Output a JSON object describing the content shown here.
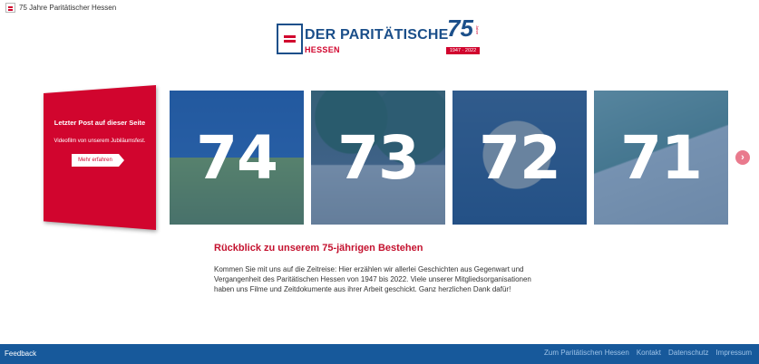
{
  "tab": {
    "title": "75 Jahre Paritätischer Hessen"
  },
  "logo": {
    "name_part1": "DER PARIT",
    "name_part2": "Ä",
    "name_part3": "TISCHE",
    "region": "HESSEN",
    "anniversary": "75",
    "jahre": "Jahre",
    "years": "1947 · 2022"
  },
  "card": {
    "title": "Letzter Post auf dieser Seite",
    "text": "Videofilm von unserem Jubiläumsfest.",
    "button": "Mehr erfahren",
    "color": "#d1052e"
  },
  "tiles": [
    {
      "number": "74"
    },
    {
      "number": "73"
    },
    {
      "number": "72"
    },
    {
      "number": "71"
    }
  ],
  "carousel": {
    "next_icon": "chevron-right-icon",
    "next_glyph": "›"
  },
  "content": {
    "headline": "Rückblick zu unserem 75-jährigen Bestehen",
    "intro": "Kommen Sie mit uns auf die Zeitreise:  Hier erzählen wir allerlei Geschichten aus Gegenwart und Vergangenheit des Paritätischen Hessen von 1947 bis 2022. Viele unserer Mitgliedsorganisationen haben uns Filme und Zeitdokumente aus ihrer Arbeit geschickt. Ganz herzlichen Dank dafür!"
  },
  "footer": {
    "feedback": "Feedback",
    "links": [
      "Zum Paritätischen Hessen",
      "Kontakt",
      "Datenschutz",
      "Impressum"
    ],
    "color": "#17599b"
  }
}
